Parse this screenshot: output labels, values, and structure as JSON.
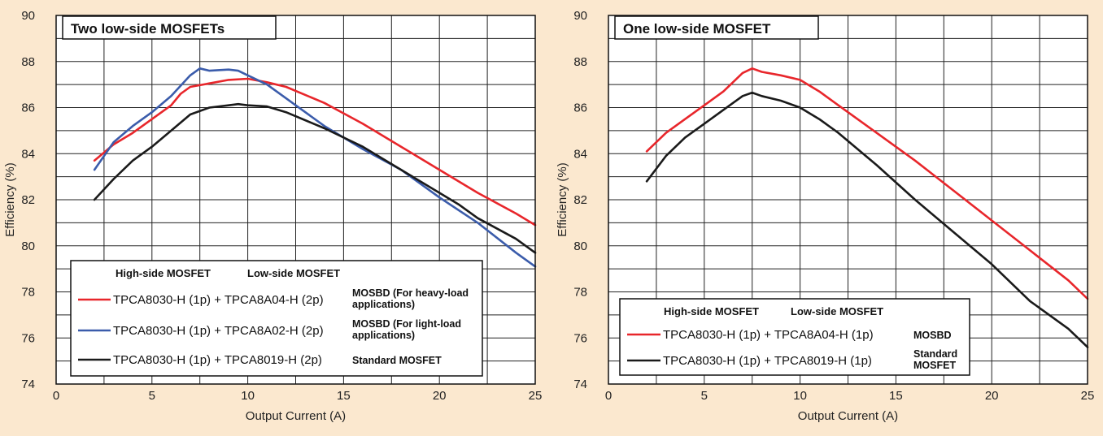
{
  "background_color": "#fbe8cf",
  "chart_data": [
    {
      "type": "line",
      "title": "Two low-side MOSFETs",
      "xlabel": "Output Current (A)",
      "ylabel": "Efficiency (%)",
      "xlim": [
        0,
        25
      ],
      "ylim": [
        74,
        90
      ],
      "x_ticks": [
        "0",
        "5",
        "10",
        "15",
        "20",
        "25"
      ],
      "y_ticks": [
        "74",
        "76",
        "78",
        "80",
        "82",
        "84",
        "86",
        "88",
        "90"
      ],
      "grid": "both",
      "legend": {
        "placement": "bottom-left",
        "header_high": "High-side MOSFET",
        "header_low": "Low-side MOSFET",
        "entries": [
          {
            "parts": "TPCA8030-H (1p) + TPCA8A04-H (2p)",
            "type_lines": [
              "MOSBD (For heavy-load",
              "applications)"
            ]
          },
          {
            "parts": "TPCA8030-H (1p) + TPCA8A02-H (2p)",
            "type_lines": [
              "MOSBD (For light-load",
              "applications)"
            ]
          },
          {
            "parts": "TPCA8030-H (1p) + TPCA8019-H (2p)",
            "type_lines": [
              "Standard MOSFET"
            ]
          }
        ]
      },
      "series": [
        {
          "color": "#e8262b",
          "x": [
            2,
            3,
            4,
            5,
            6,
            6.5,
            7,
            8,
            9,
            10,
            11,
            12,
            14,
            16,
            18,
            20,
            22,
            24,
            25
          ],
          "y": [
            83.7,
            84.4,
            84.9,
            85.5,
            86.1,
            86.6,
            86.9,
            87.05,
            87.2,
            87.25,
            87.1,
            86.9,
            86.2,
            85.3,
            84.3,
            83.3,
            82.3,
            81.4,
            80.9
          ]
        },
        {
          "color": "#3b5cab",
          "x": [
            2,
            3,
            4,
            5,
            6,
            7,
            7.5,
            8,
            9,
            9.5,
            10,
            11,
            12,
            14,
            16,
            18,
            20,
            22,
            24,
            25
          ],
          "y": [
            83.3,
            84.5,
            85.2,
            85.8,
            86.5,
            87.4,
            87.7,
            87.6,
            87.65,
            87.6,
            87.4,
            87.0,
            86.4,
            85.2,
            84.2,
            83.3,
            82.1,
            81.0,
            79.7,
            79.1
          ]
        },
        {
          "color": "#1a1a1a",
          "x": [
            2,
            3,
            4,
            5,
            6,
            7,
            8,
            9,
            9.5,
            10,
            11,
            12,
            14,
            16,
            18,
            20,
            21,
            22,
            24,
            25
          ],
          "y": [
            82.0,
            82.9,
            83.7,
            84.3,
            85.0,
            85.7,
            86.0,
            86.1,
            86.15,
            86.1,
            86.05,
            85.8,
            85.1,
            84.3,
            83.3,
            82.3,
            81.8,
            81.2,
            80.3,
            79.7
          ]
        }
      ]
    },
    {
      "type": "line",
      "title": "One low-side MOSFET",
      "xlabel": "Output Current (A)",
      "ylabel": "Efficiency (%)",
      "xlim": [
        0,
        25
      ],
      "ylim": [
        74,
        90
      ],
      "x_ticks": [
        "0",
        "5",
        "10",
        "15",
        "20",
        "25"
      ],
      "y_ticks": [
        "74",
        "76",
        "78",
        "80",
        "82",
        "84",
        "86",
        "88",
        "90"
      ],
      "grid": "both",
      "legend": {
        "placement": "bottom-left",
        "header_high": "High-side MOSFET",
        "header_low": "Low-side MOSFET",
        "entries": [
          {
            "parts": "TPCA8030-H (1p) + TPCA8A04-H (1p)",
            "type_lines": [
              "MOSBD"
            ]
          },
          {
            "parts": "TPCA8030-H (1p) + TPCA8019-H (1p)",
            "type_lines": [
              "Standard",
              "MOSFET"
            ]
          }
        ]
      },
      "series": [
        {
          "color": "#e8262b",
          "x": [
            2,
            3,
            4,
            5,
            6,
            7,
            7.5,
            8,
            9,
            10,
            11,
            12,
            14,
            16,
            18,
            20,
            22,
            24,
            25
          ],
          "y": [
            84.1,
            84.9,
            85.5,
            86.1,
            86.7,
            87.5,
            87.7,
            87.55,
            87.4,
            87.2,
            86.7,
            86.1,
            84.9,
            83.7,
            82.4,
            81.1,
            79.8,
            78.5,
            77.7
          ]
        },
        {
          "color": "#1a1a1a",
          "x": [
            2,
            3,
            4,
            5,
            6,
            7,
            7.5,
            8,
            9,
            10,
            11,
            12,
            14,
            16,
            18,
            20,
            22,
            24,
            25
          ],
          "y": [
            82.8,
            83.9,
            84.7,
            85.3,
            85.9,
            86.5,
            86.65,
            86.5,
            86.3,
            86.0,
            85.5,
            84.9,
            83.5,
            82.0,
            80.6,
            79.2,
            77.6,
            76.4,
            75.6
          ]
        }
      ]
    }
  ]
}
